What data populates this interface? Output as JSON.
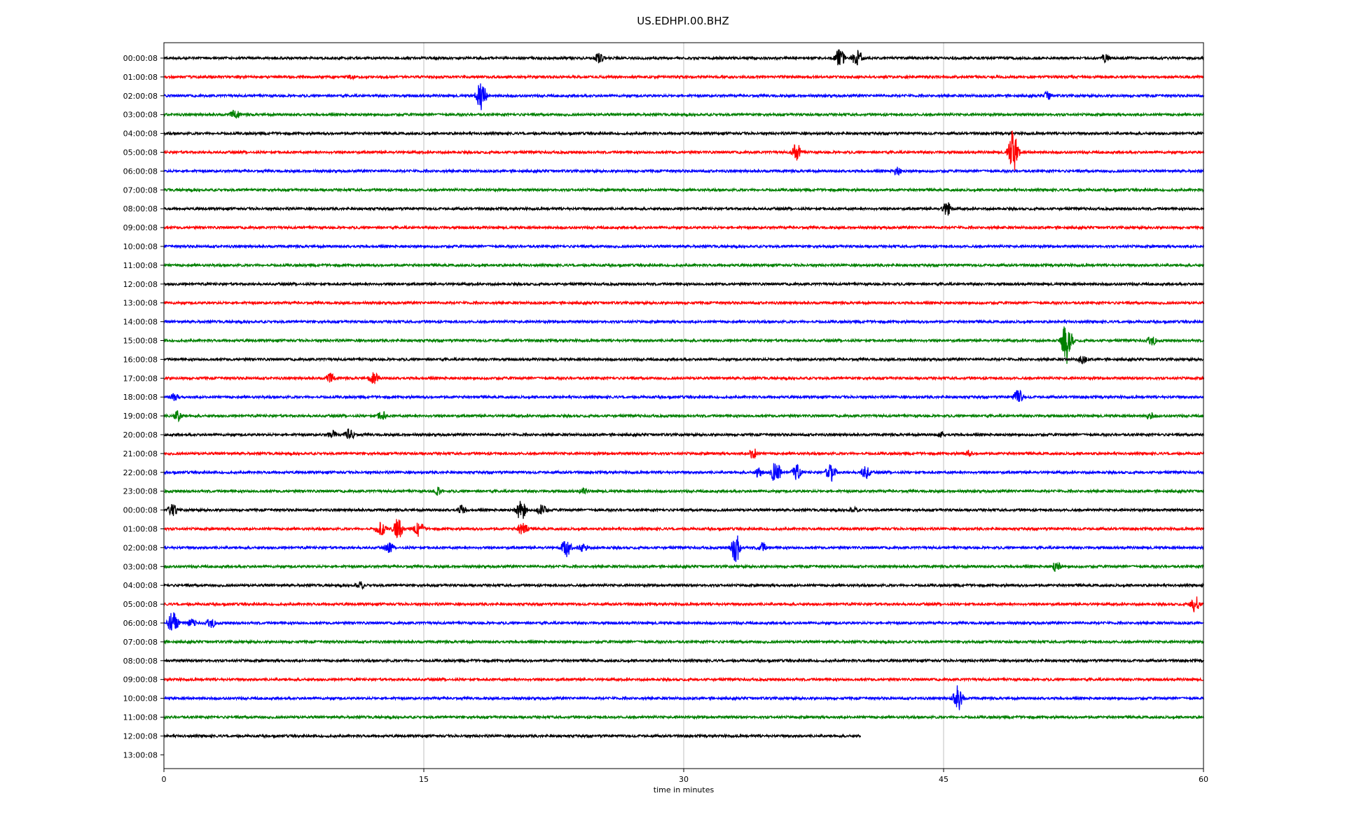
{
  "chart_data": {
    "type": "line",
    "title": "US.EDHPI.00.BHZ",
    "subtitle": "",
    "xlabel": "time in minutes",
    "ylabel": "",
    "xlim": [
      0,
      60
    ],
    "x_ticks": [
      "0",
      "15",
      "30",
      "45",
      "60"
    ],
    "x_tick_values": [
      0,
      15,
      30,
      45,
      60
    ],
    "grid": "vertical lines at 15, 30, 45",
    "legend": "none",
    "colors": [
      "#000000",
      "#ff0000",
      "#0000ff",
      "#008000"
    ],
    "row_labels": [
      "00:00:08",
      "01:00:08",
      "02:00:08",
      "03:00:08",
      "04:00:08",
      "05:00:08",
      "06:00:08",
      "07:00:08",
      "08:00:08",
      "09:00:08",
      "10:00:08",
      "11:00:08",
      "12:00:08",
      "13:00:08",
      "14:00:08",
      "15:00:08",
      "16:00:08",
      "17:00:08",
      "18:00:08",
      "19:00:08",
      "20:00:08",
      "21:00:08",
      "22:00:08",
      "23:00:08",
      "00:00:08",
      "01:00:08",
      "02:00:08",
      "03:00:08",
      "04:00:08",
      "05:00:08",
      "06:00:08",
      "07:00:08",
      "08:00:08",
      "09:00:08",
      "10:00:08",
      "11:00:08",
      "12:00:08",
      "13:00:08"
    ],
    "trace_end_minutes": [
      60,
      60,
      60,
      60,
      60,
      60,
      60,
      60,
      60,
      60,
      60,
      60,
      60,
      60,
      60,
      60,
      60,
      60,
      60,
      60,
      60,
      60,
      60,
      60,
      60,
      60,
      60,
      60,
      60,
      60,
      60,
      60,
      60,
      60,
      60,
      60,
      40.2,
      0
    ],
    "events": [
      {
        "row": 0,
        "minute": 25.1,
        "amplitude": 0.6
      },
      {
        "row": 0,
        "minute": 39.0,
        "amplitude": 1.1
      },
      {
        "row": 0,
        "minute": 40.0,
        "amplitude": 1.2
      },
      {
        "row": 0,
        "minute": 54.3,
        "amplitude": 0.5
      },
      {
        "row": 1,
        "minute": 10.8,
        "amplitude": 0.3
      },
      {
        "row": 2,
        "minute": 18.3,
        "amplitude": 1.6
      },
      {
        "row": 2,
        "minute": 51.0,
        "amplitude": 0.5
      },
      {
        "row": 3,
        "minute": 4.1,
        "amplitude": 0.6
      },
      {
        "row": 5,
        "minute": 36.5,
        "amplitude": 1.0
      },
      {
        "row": 5,
        "minute": 49.0,
        "amplitude": 2.6
      },
      {
        "row": 6,
        "minute": 42.3,
        "amplitude": 0.5
      },
      {
        "row": 8,
        "minute": 45.2,
        "amplitude": 0.8
      },
      {
        "row": 15,
        "minute": 52.1,
        "amplitude": 2.6
      },
      {
        "row": 15,
        "minute": 57.0,
        "amplitude": 0.6
      },
      {
        "row": 16,
        "minute": 53.0,
        "amplitude": 0.5
      },
      {
        "row": 17,
        "minute": 9.6,
        "amplitude": 0.6
      },
      {
        "row": 17,
        "minute": 12.1,
        "amplitude": 0.7
      },
      {
        "row": 18,
        "minute": 0.6,
        "amplitude": 0.5
      },
      {
        "row": 18,
        "minute": 49.3,
        "amplitude": 0.9
      },
      {
        "row": 19,
        "minute": 0.8,
        "amplitude": 0.7
      },
      {
        "row": 19,
        "minute": 12.6,
        "amplitude": 0.6
      },
      {
        "row": 19,
        "minute": 56.9,
        "amplitude": 0.5
      },
      {
        "row": 20,
        "minute": 9.7,
        "amplitude": 0.5
      },
      {
        "row": 20,
        "minute": 10.7,
        "amplitude": 0.8
      },
      {
        "row": 20,
        "minute": 44.8,
        "amplitude": 0.4
      },
      {
        "row": 21,
        "minute": 34.0,
        "amplitude": 0.7
      },
      {
        "row": 21,
        "minute": 46.4,
        "amplitude": 0.4
      },
      {
        "row": 22,
        "minute": 34.3,
        "amplitude": 0.6
      },
      {
        "row": 22,
        "minute": 35.3,
        "amplitude": 1.4
      },
      {
        "row": 22,
        "minute": 36.5,
        "amplitude": 0.9
      },
      {
        "row": 22,
        "minute": 38.5,
        "amplitude": 1.2
      },
      {
        "row": 22,
        "minute": 40.5,
        "amplitude": 0.8
      },
      {
        "row": 23,
        "minute": 15.8,
        "amplitude": 0.5
      },
      {
        "row": 23,
        "minute": 24.2,
        "amplitude": 0.4
      },
      {
        "row": 24,
        "minute": 0.5,
        "amplitude": 0.7
      },
      {
        "row": 24,
        "minute": 17.2,
        "amplitude": 0.6
      },
      {
        "row": 24,
        "minute": 20.6,
        "amplitude": 1.3
      },
      {
        "row": 24,
        "minute": 21.8,
        "amplitude": 0.7
      },
      {
        "row": 24,
        "minute": 39.8,
        "amplitude": 0.4
      },
      {
        "row": 25,
        "minute": 12.5,
        "amplitude": 0.9
      },
      {
        "row": 25,
        "minute": 13.5,
        "amplitude": 1.2
      },
      {
        "row": 25,
        "minute": 14.7,
        "amplitude": 0.9
      },
      {
        "row": 25,
        "minute": 20.7,
        "amplitude": 1.0
      },
      {
        "row": 26,
        "minute": 13.0,
        "amplitude": 0.6
      },
      {
        "row": 26,
        "minute": 23.2,
        "amplitude": 1.1
      },
      {
        "row": 26,
        "minute": 24.2,
        "amplitude": 0.6
      },
      {
        "row": 26,
        "minute": 33.0,
        "amplitude": 1.6
      },
      {
        "row": 26,
        "minute": 34.5,
        "amplitude": 0.6
      },
      {
        "row": 27,
        "minute": 51.5,
        "amplitude": 0.6
      },
      {
        "row": 28,
        "minute": 11.3,
        "amplitude": 0.5
      },
      {
        "row": 29,
        "minute": 59.5,
        "amplitude": 1.0
      },
      {
        "row": 30,
        "minute": 0.5,
        "amplitude": 1.5
      },
      {
        "row": 30,
        "minute": 1.6,
        "amplitude": 0.5
      },
      {
        "row": 30,
        "minute": 2.7,
        "amplitude": 0.6
      },
      {
        "row": 34,
        "minute": 45.8,
        "amplitude": 1.5
      }
    ]
  }
}
